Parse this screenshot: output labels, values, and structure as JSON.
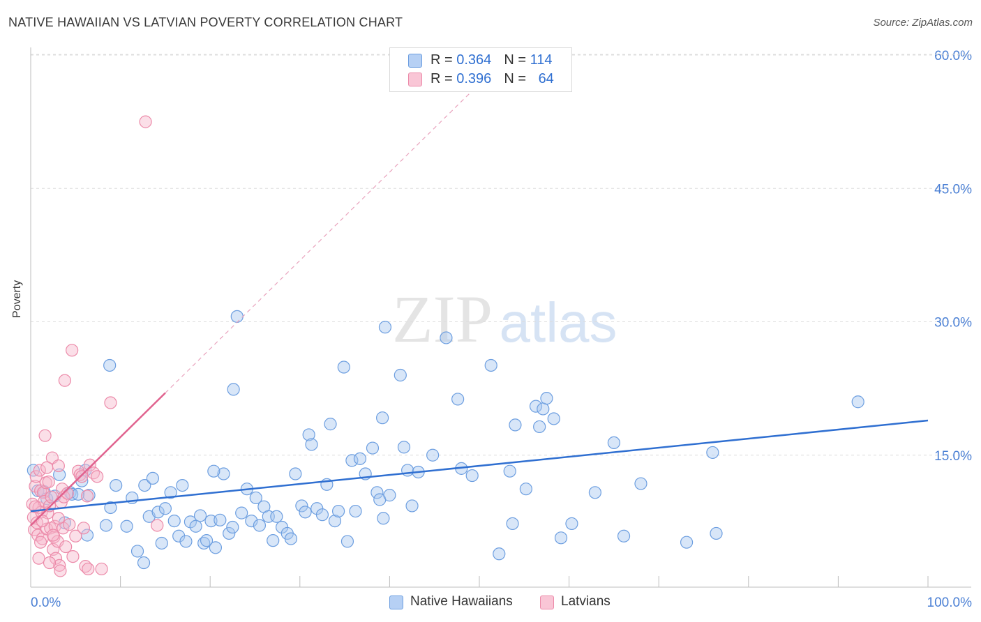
{
  "title": "NATIVE HAWAIIAN VS LATVIAN POVERTY CORRELATION CHART",
  "source": "Source: ZipAtlas.com",
  "watermark": {
    "zip": "ZIP",
    "atlas": "atlas"
  },
  "colors": {
    "blue_fill": "#a9c7f0",
    "blue_stroke": "#6c9ee0",
    "blue_line": "#2f6fd1",
    "pink_fill": "#f7b8cb",
    "pink_stroke": "#ec8aa9",
    "pink_line": "#e0628e",
    "tick_label": "#4a7fd4",
    "grid": "#dcdcdc"
  },
  "legend_top": [
    {
      "r_label": "R = ",
      "r_value": "0.364",
      "n_label": "N = ",
      "n_value": "114"
    },
    {
      "r_label": "R = ",
      "r_value": "0.396",
      "n_label": "N = ",
      "n_value": "64"
    }
  ],
  "legend_bottom": [
    "Native Hawaiians",
    "Latvians"
  ],
  "chart_data": {
    "type": "scatter",
    "title": "NATIVE HAWAIIAN VS LATVIAN POVERTY CORRELATION CHART",
    "xlabel": "",
    "ylabel": "Poverty",
    "xlim": [
      0,
      100
    ],
    "ylim": [
      0,
      63
    ],
    "x_tick_labels": [
      "0.0%",
      "100.0%"
    ],
    "y_ticks": [
      15,
      30,
      45,
      60
    ],
    "y_tick_labels": [
      "15.0%",
      "30.0%",
      "45.0%",
      "60.0%"
    ],
    "grid": true,
    "legend_position": "top-center",
    "series": [
      {
        "name": "Native Hawaiians",
        "r": 0.364,
        "n": 114,
        "trend": {
          "x": [
            0,
            100
          ],
          "y": [
            8.7,
            18.9
          ],
          "style": "solid"
        },
        "points": [
          [
            0.3,
            13.3
          ],
          [
            0.8,
            11.0
          ],
          [
            1.5,
            10.9
          ],
          [
            1.8,
            10.1
          ],
          [
            2.7,
            10.4
          ],
          [
            3.2,
            12.8
          ],
          [
            3.8,
            7.4
          ],
          [
            4.4,
            10.8
          ],
          [
            4.6,
            10.6
          ],
          [
            5.3,
            10.6
          ],
          [
            5.7,
            12.1
          ],
          [
            6.1,
            13.3
          ],
          [
            6.5,
            10.5
          ],
          [
            6.3,
            6.0
          ],
          [
            8.4,
            7.1
          ],
          [
            8.9,
            9.1
          ],
          [
            9.5,
            11.6
          ],
          [
            10.7,
            7.0
          ],
          [
            11.3,
            10.2
          ],
          [
            11.9,
            4.2
          ],
          [
            12.7,
            11.6
          ],
          [
            13.2,
            8.1
          ],
          [
            13.6,
            12.4
          ],
          [
            14.2,
            8.6
          ],
          [
            14.6,
            5.1
          ],
          [
            15.0,
            9.0
          ],
          [
            15.6,
            10.8
          ],
          [
            16.0,
            7.6
          ],
          [
            16.5,
            5.9
          ],
          [
            16.9,
            11.6
          ],
          [
            17.3,
            5.3
          ],
          [
            17.8,
            7.5
          ],
          [
            18.4,
            7.0
          ],
          [
            18.9,
            8.2
          ],
          [
            19.3,
            5.1
          ],
          [
            19.6,
            5.4
          ],
          [
            20.1,
            7.6
          ],
          [
            20.6,
            4.6
          ],
          [
            21.1,
            7.7
          ],
          [
            21.5,
            12.9
          ],
          [
            22.1,
            6.2
          ],
          [
            22.5,
            6.9
          ],
          [
            23.0,
            30.6
          ],
          [
            23.5,
            8.5
          ],
          [
            24.1,
            11.2
          ],
          [
            24.6,
            7.6
          ],
          [
            25.1,
            10.2
          ],
          [
            25.5,
            7.1
          ],
          [
            26.0,
            9.2
          ],
          [
            26.5,
            8.1
          ],
          [
            27.0,
            5.4
          ],
          [
            27.4,
            8.1
          ],
          [
            28.0,
            6.9
          ],
          [
            28.6,
            6.2
          ],
          [
            29.0,
            5.6
          ],
          [
            29.5,
            12.9
          ],
          [
            30.2,
            9.3
          ],
          [
            30.6,
            8.6
          ],
          [
            31.0,
            17.3
          ],
          [
            31.3,
            16.2
          ],
          [
            31.9,
            9.0
          ],
          [
            32.5,
            8.3
          ],
          [
            33.0,
            11.7
          ],
          [
            33.4,
            18.5
          ],
          [
            33.9,
            7.6
          ],
          [
            34.3,
            8.7
          ],
          [
            34.9,
            24.9
          ],
          [
            35.3,
            5.3
          ],
          [
            35.8,
            14.4
          ],
          [
            36.2,
            8.7
          ],
          [
            36.7,
            14.6
          ],
          [
            37.3,
            12.9
          ],
          [
            38.1,
            15.8
          ],
          [
            38.6,
            10.8
          ],
          [
            38.9,
            10.0
          ],
          [
            39.3,
            7.9
          ],
          [
            40.0,
            10.5
          ],
          [
            39.5,
            29.4
          ],
          [
            39.2,
            19.2
          ],
          [
            41.2,
            24.0
          ],
          [
            41.6,
            15.9
          ],
          [
            42.0,
            13.3
          ],
          [
            42.5,
            9.3
          ],
          [
            43.2,
            13.1
          ],
          [
            44.8,
            15.0
          ],
          [
            46.3,
            28.2
          ],
          [
            47.6,
            21.3
          ],
          [
            48.0,
            13.5
          ],
          [
            49.2,
            12.7
          ],
          [
            51.3,
            25.1
          ],
          [
            52.2,
            3.9
          ],
          [
            53.4,
            13.2
          ],
          [
            53.7,
            7.3
          ],
          [
            54.0,
            18.4
          ],
          [
            55.2,
            11.2
          ],
          [
            56.3,
            20.5
          ],
          [
            56.7,
            18.2
          ],
          [
            57.1,
            20.2
          ],
          [
            57.5,
            21.4
          ],
          [
            58.3,
            19.1
          ],
          [
            59.1,
            5.7
          ],
          [
            60.3,
            7.3
          ],
          [
            62.9,
            10.8
          ],
          [
            65.0,
            16.4
          ],
          [
            66.1,
            5.9
          ],
          [
            68.0,
            11.8
          ],
          [
            73.1,
            5.2
          ],
          [
            76.0,
            15.3
          ],
          [
            76.4,
            6.2
          ],
          [
            92.2,
            21.0
          ],
          [
            22.6,
            22.4
          ],
          [
            12.6,
            2.9
          ],
          [
            8.8,
            25.1
          ],
          [
            20.4,
            13.2
          ]
        ]
      },
      {
        "name": "Latvians",
        "r": 0.396,
        "n": 64,
        "trend": {
          "x": [
            0,
            15
          ],
          "y": [
            7.1,
            22.0
          ],
          "x_dashed_to": 50,
          "style": "solid+dashed"
        },
        "points": [
          [
            0.2,
            9.5
          ],
          [
            0.3,
            8.0
          ],
          [
            0.4,
            6.6
          ],
          [
            0.5,
            11.5
          ],
          [
            0.6,
            12.6
          ],
          [
            0.7,
            7.4
          ],
          [
            0.8,
            6.0
          ],
          [
            0.9,
            9.1
          ],
          [
            1.0,
            13.3
          ],
          [
            1.1,
            11.0
          ],
          [
            1.2,
            8.6
          ],
          [
            1.3,
            5.6
          ],
          [
            1.4,
            10.8
          ],
          [
            1.5,
            9.8
          ],
          [
            1.6,
            17.2
          ],
          [
            1.7,
            11.9
          ],
          [
            1.8,
            6.7
          ],
          [
            1.9,
            8.5
          ],
          [
            2.0,
            12.0
          ],
          [
            2.1,
            9.3
          ],
          [
            2.2,
            6.8
          ],
          [
            2.3,
            10.3
          ],
          [
            2.4,
            14.7
          ],
          [
            2.5,
            4.4
          ],
          [
            2.6,
            5.8
          ],
          [
            2.7,
            7.0
          ],
          [
            2.8,
            3.4
          ],
          [
            3.0,
            5.3
          ],
          [
            3.1,
            13.8
          ],
          [
            3.2,
            2.6
          ],
          [
            3.3,
            2.0
          ],
          [
            3.4,
            9.7
          ],
          [
            3.5,
            11.2
          ],
          [
            3.6,
            6.8
          ],
          [
            3.7,
            10.3
          ],
          [
            3.8,
            23.4
          ],
          [
            3.9,
            4.7
          ],
          [
            4.1,
            10.7
          ],
          [
            4.3,
            7.2
          ],
          [
            4.6,
            26.8
          ],
          [
            5.0,
            5.9
          ],
          [
            5.3,
            13.2
          ],
          [
            5.5,
            12.8
          ],
          [
            5.7,
            12.6
          ],
          [
            5.9,
            6.8
          ],
          [
            6.1,
            2.5
          ],
          [
            6.3,
            10.4
          ],
          [
            6.6,
            13.9
          ],
          [
            7.0,
            13.0
          ],
          [
            7.4,
            12.6
          ],
          [
            7.9,
            2.2
          ],
          [
            8.9,
            20.9
          ],
          [
            12.8,
            52.5
          ],
          [
            14.1,
            7.1
          ],
          [
            1.1,
            5.2
          ],
          [
            2.1,
            2.9
          ],
          [
            3.1,
            7.9
          ],
          [
            0.5,
            9.2
          ],
          [
            1.8,
            13.6
          ],
          [
            0.9,
            3.4
          ],
          [
            2.5,
            6.0
          ],
          [
            4.7,
            3.6
          ],
          [
            6.4,
            2.2
          ],
          [
            1.3,
            7.6
          ]
        ]
      }
    ]
  }
}
